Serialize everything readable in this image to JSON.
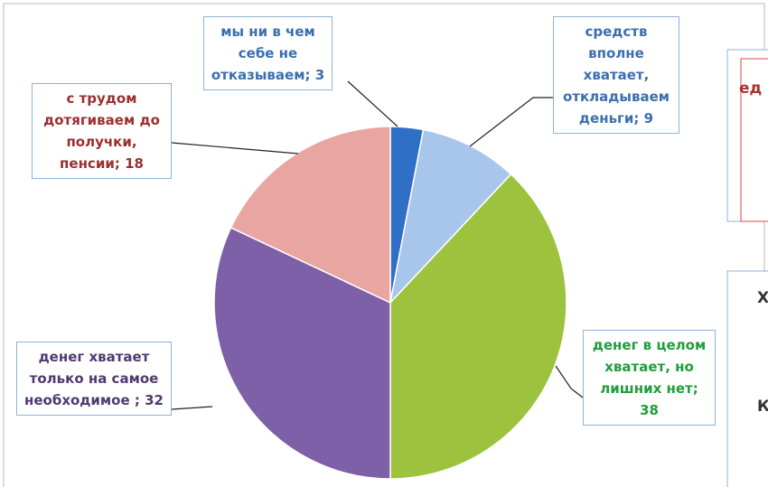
{
  "chart_data": {
    "type": "pie",
    "values": [
      3,
      9,
      38,
      32,
      18
    ],
    "value_labels": [
      "мы ни в чем себе не отказываем; 3",
      "средств вполне хватает, откладываем деньги; 9",
      "денег в целом хватает, но лишних нет; 38",
      "денег хватает только на самое необходимое ; 32",
      "с трудом дотягиваем до получки, пенсии; 18"
    ],
    "colors": [
      "#2f6fc6",
      "#a8c6ec",
      "#9cc23e",
      "#7d60a8",
      "#e9a5a2"
    ],
    "label_colors": [
      "#3b6fae",
      "#3b6fae",
      "#1f9e3b",
      "#4f3a72",
      "#9b2f2f"
    ]
  },
  "fragments": [
    "ед",
    "Х",
    "К"
  ]
}
